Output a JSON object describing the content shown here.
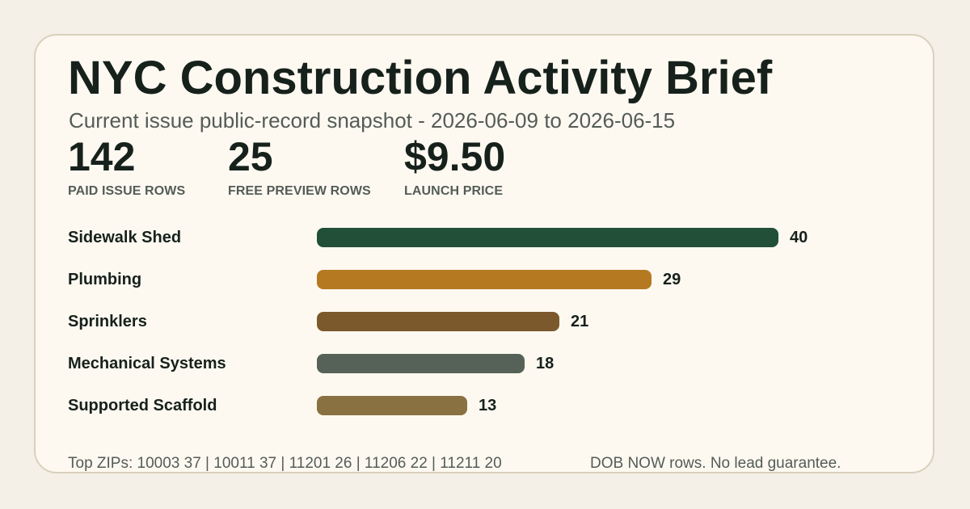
{
  "header": {
    "title": "NYC Construction Activity Brief",
    "subtitle": "Current issue public-record snapshot - 2026-06-09 to 2026-06-15"
  },
  "stats": [
    {
      "value": "142",
      "label": "PAID ISSUE ROWS"
    },
    {
      "value": "25",
      "label": "FREE PREVIEW ROWS"
    },
    {
      "value": "$9.50",
      "label": "LAUNCH PRICE"
    }
  ],
  "chart_data": {
    "type": "bar",
    "orientation": "horizontal",
    "categories": [
      "Sidewalk Shed",
      "Plumbing",
      "Sprinklers",
      "Mechanical Systems",
      "Supported Scaffold"
    ],
    "values": [
      40,
      29,
      21,
      18,
      13
    ],
    "colors": [
      "#214f37",
      "#b47921",
      "#7b592c",
      "#566257",
      "#8a7141"
    ],
    "title": "",
    "xlabel": "",
    "ylabel": "",
    "grid": false
  },
  "footer": {
    "zips": "Top ZIPs: 10003 37 | 10011 37 | 11201 26 | 11206 22 | 11211 20",
    "disclaimer": "DOB NOW rows. No lead guarantee."
  }
}
